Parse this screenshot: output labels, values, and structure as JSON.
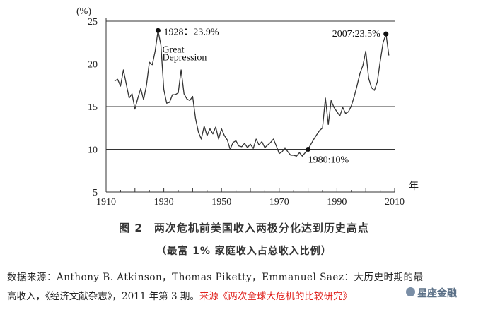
{
  "chart_data": {
    "type": "line",
    "y_unit_label": "(%)",
    "x_unit_label": "年",
    "xlim": [
      1910,
      2010
    ],
    "ylim": [
      5,
      25
    ],
    "x_ticks": [
      1910,
      1930,
      1950,
      1970,
      1990,
      2010
    ],
    "y_ticks": [
      5,
      10,
      15,
      20,
      25
    ],
    "grid": "horizontal",
    "series": [
      {
        "x": [
          1913,
          1914,
          1915,
          1916,
          1917,
          1918,
          1919,
          1920,
          1921,
          1922,
          1923,
          1924,
          1925,
          1926,
          1927,
          1928,
          1929,
          1930,
          1931,
          1932,
          1933,
          1934,
          1935,
          1936,
          1937,
          1938,
          1939,
          1940,
          1941,
          1942,
          1943,
          1944,
          1945,
          1946,
          1947,
          1948,
          1949,
          1950,
          1951,
          1952,
          1953,
          1954,
          1955,
          1956,
          1957,
          1958,
          1959,
          1960,
          1961,
          1962,
          1963,
          1964,
          1965,
          1966,
          1967,
          1968,
          1969,
          1970,
          1971,
          1972,
          1973,
          1974,
          1975,
          1976,
          1977,
          1978,
          1979,
          1980,
          1981,
          1982,
          1983,
          1984,
          1985,
          1986,
          1987,
          1988,
          1989,
          1990,
          1991,
          1992,
          1993,
          1994,
          1995,
          1996,
          1997,
          1998,
          1999,
          2000,
          2001,
          2002,
          2003,
          2004,
          2005,
          2006,
          2007,
          2008
        ],
        "y": [
          18.0,
          18.2,
          17.4,
          19.3,
          17.6,
          16.0,
          16.5,
          14.7,
          16.0,
          17.1,
          15.8,
          17.5,
          20.2,
          19.9,
          21.5,
          23.9,
          22.2,
          17.0,
          15.4,
          15.5,
          16.4,
          16.4,
          16.6,
          19.3,
          16.5,
          15.9,
          15.7,
          16.2,
          13.6,
          12.0,
          11.2,
          12.7,
          11.6,
          12.4,
          11.8,
          12.6,
          11.2,
          12.4,
          11.6,
          11.1,
          10.0,
          10.8,
          11.0,
          10.4,
          10.3,
          10.7,
          10.2,
          10.6,
          10.1,
          11.2,
          10.5,
          10.9,
          10.2,
          10.5,
          10.8,
          11.2,
          10.4,
          9.5,
          9.7,
          10.2,
          9.7,
          9.3,
          9.3,
          9.2,
          9.6,
          9.2,
          9.6,
          10.0,
          10.6,
          11.2,
          11.7,
          12.2,
          12.5,
          16.0,
          12.9,
          15.7,
          14.9,
          14.4,
          13.9,
          14.9,
          14.2,
          14.4,
          15.1,
          16.2,
          17.5,
          18.9,
          19.8,
          21.5,
          18.3,
          17.2,
          16.9,
          17.9,
          20.3,
          22.5,
          23.5,
          21.0
        ]
      }
    ],
    "annotations": [
      {
        "x": 1928,
        "y": 23.9,
        "text": "1928：23.9%"
      },
      {
        "x": 2007,
        "y": 23.5,
        "text": "2007:23.5%"
      },
      {
        "x": 1980,
        "y": 10.0,
        "text": "1980:10%"
      },
      {
        "x": 1928,
        "y": 23.9,
        "text": "Great"
      },
      {
        "x": 1928,
        "y": 23.9,
        "text": "Depression"
      }
    ]
  },
  "caption": {
    "title": "图 2　两次危机前美国收入两极分化达到历史高点",
    "subtitle": "（最富 1% 家庭收入占总收入比例）"
  },
  "source": {
    "line1": "数据来源：Anthony B. Atkinson，Thomas Piketty，Emmanuel Saez：大历史时期的最",
    "line2_black": "高收入，《经济文献杂志》，2011 年第 3 期。",
    "line2_red": "来源《两次全球大危机的比较研究》"
  },
  "watermark": {
    "text": "星座金融",
    "icon": "logo-icon"
  },
  "colors": {
    "line": "#333333",
    "grid": "#333333",
    "accent_red": "#e0201c"
  }
}
